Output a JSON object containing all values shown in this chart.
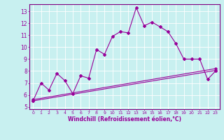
{
  "xlabel": "Windchill (Refroidissement éolien,°C)",
  "bg_color": "#c8f0f0",
  "line_color": "#990099",
  "spine_color": "#800080",
  "xlim": [
    -0.5,
    23.5
  ],
  "ylim": [
    4.8,
    13.6
  ],
  "xticks": [
    0,
    1,
    2,
    3,
    4,
    5,
    6,
    7,
    8,
    9,
    10,
    11,
    12,
    13,
    14,
    15,
    16,
    17,
    18,
    19,
    20,
    21,
    22,
    23
  ],
  "yticks": [
    5,
    6,
    7,
    8,
    9,
    10,
    11,
    12,
    13
  ],
  "series1_x": [
    0,
    1,
    2,
    3,
    4,
    5,
    6,
    7,
    8,
    9,
    10,
    11,
    12,
    13,
    14,
    15,
    16,
    17,
    18,
    19,
    20,
    21,
    22,
    23
  ],
  "series1_y": [
    5.5,
    7.0,
    6.4,
    7.8,
    7.2,
    6.1,
    7.6,
    7.4,
    9.8,
    9.4,
    10.9,
    11.3,
    11.2,
    13.3,
    11.8,
    12.1,
    11.7,
    11.3,
    10.3,
    9.0,
    9.0,
    9.0,
    7.3,
    8.0
  ],
  "series2_x": [
    0,
    23
  ],
  "series2_y": [
    5.5,
    8.05
  ],
  "series3_x": [
    0,
    23
  ],
  "series3_y": [
    5.6,
    8.2
  ]
}
